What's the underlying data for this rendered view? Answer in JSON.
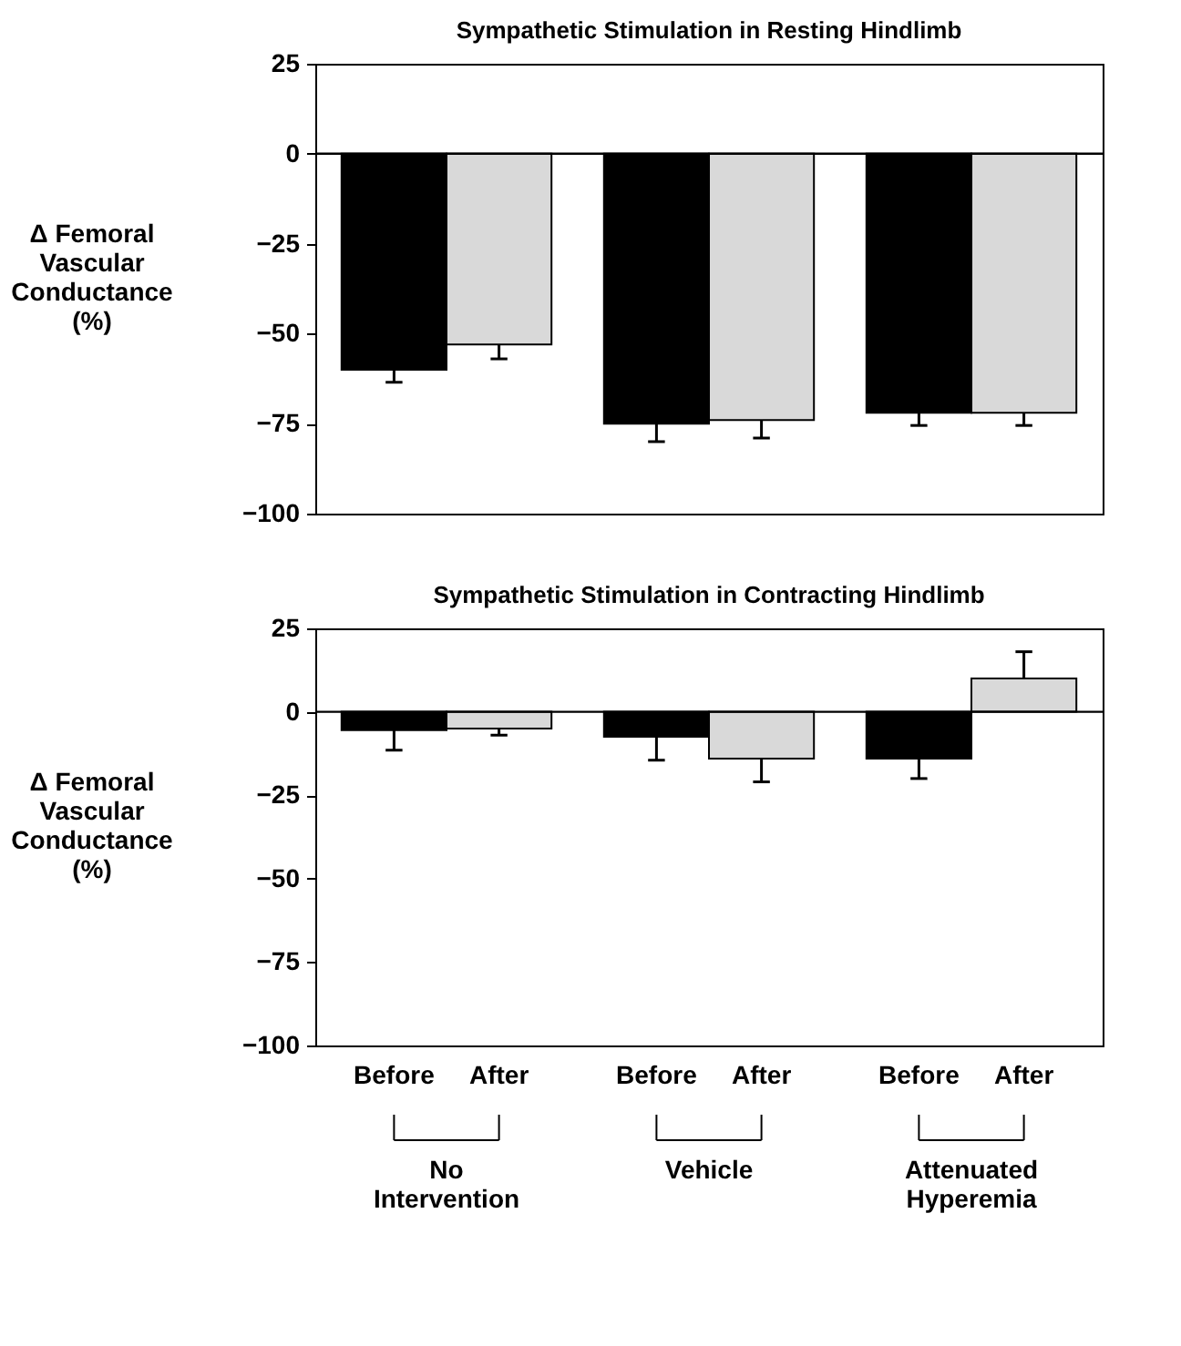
{
  "chart_data": [
    {
      "type": "bar",
      "title": "Sympathetic Stimulation in Resting Hindlimb",
      "ylabel": "Δ Femoral Vascular Conductance (%)",
      "categories": [
        "No Intervention",
        "Vehicle",
        "Attenuated Hyperemia"
      ],
      "series": [
        {
          "color": "#000000",
          "values": [
            -60,
            -75,
            -72
          ],
          "errors": [
            [
              -63.5,
              -60
            ],
            [
              -80,
              -75
            ],
            [
              -75.5,
              -72
            ]
          ]
        },
        {
          "color": "#d9d9d9",
          "values": [
            -53,
            -74,
            -72
          ],
          "errors": [
            [
              -57,
              -53
            ],
            [
              -79,
              -74
            ],
            [
              -75.5,
              -72
            ]
          ]
        }
      ],
      "ylim": [
        -100,
        25
      ],
      "yticks": [
        -100,
        -75,
        -50,
        -25,
        0,
        25
      ],
      "grid": false,
      "tick_labels": "y",
      "ref_lines": [
        {
          "axis": "y",
          "value": 0
        }
      ]
    },
    {
      "type": "bar",
      "title": "Sympathetic Stimulation in Contracting Hindlimb",
      "ylabel": "Δ Femoral Vascular Conductance (%)",
      "categories": [
        "Before",
        "After",
        "Before",
        "After",
        "Before",
        "After"
      ],
      "values": [
        -5.5,
        -5,
        -7.5,
        -14,
        -14,
        10
      ],
      "colors": [
        "#000000",
        "#d9d9d9",
        "#000000",
        "#d9d9d9",
        "#000000",
        "#d9d9d9"
      ],
      "errors": [
        [
          -11.5,
          -5.5
        ],
        [
          -7,
          -5
        ],
        [
          -14.5,
          -7.5
        ],
        [
          -21,
          -14
        ],
        [
          -20,
          -14
        ],
        [
          10,
          18
        ]
      ],
      "annotations": [
        "No Intervention",
        "Vehicle",
        "Attenuated Hyperemia"
      ],
      "ylim": [
        -100,
        25
      ],
      "yticks": [
        -100,
        -75,
        -50,
        -25,
        0,
        25
      ],
      "grid": false,
      "ref_lines": [
        {
          "axis": "y",
          "value": 0
        }
      ]
    }
  ]
}
